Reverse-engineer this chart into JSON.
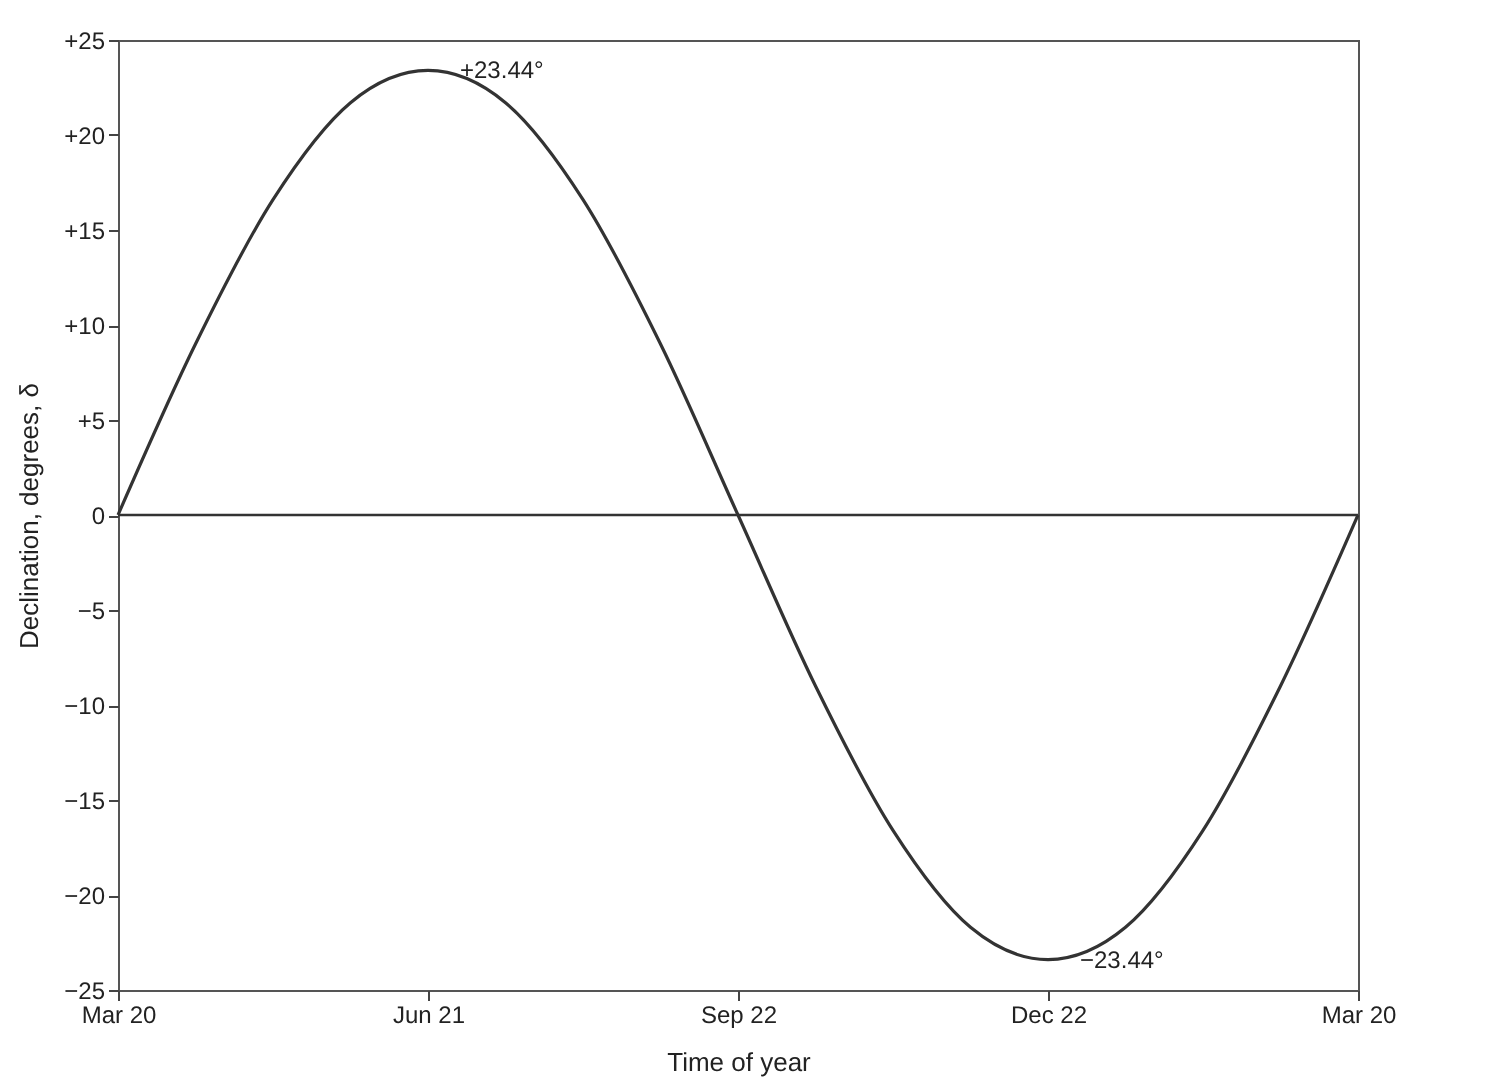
{
  "chart_data": {
    "type": "line",
    "xlabel": "Time of year",
    "ylabel": "Declination, degrees, δ",
    "categories": [
      "Mar 20",
      null,
      null,
      null,
      "Jun 21",
      null,
      null,
      null,
      "Sep 22",
      null,
      null,
      null,
      "Dec 22",
      null,
      null,
      null,
      "Mar 20"
    ],
    "series": [
      {
        "color": "#333333",
        "values": [
          0,
          9.0,
          16.6,
          21.7,
          23.4,
          21.7,
          16.6,
          9.0,
          0,
          -9.0,
          -16.6,
          -21.7,
          -23.4,
          -21.7,
          -16.6,
          -9.0,
          0
        ]
      }
    ],
    "ylim": [
      -25,
      25
    ],
    "yticks": [
      {
        "value": -25,
        "label": "−25"
      },
      {
        "value": -20,
        "label": "−20"
      },
      {
        "value": -15,
        "label": "−15"
      },
      {
        "value": -10,
        "label": "−10"
      },
      {
        "value": -5,
        "label": "−5"
      },
      0,
      {
        "value": 5,
        "label": "+5"
      },
      {
        "value": 10,
        "label": "+10"
      },
      {
        "value": 15,
        "label": "+15"
      },
      {
        "value": 20,
        "label": "+20"
      },
      {
        "value": 25,
        "label": "+25"
      }
    ],
    "ref_lines": [
      {
        "axis": "y",
        "value": 0
      }
    ],
    "annotations": [
      {
        "text": "+23.44°",
        "x": "Jun 21",
        "y": 23.44
      },
      {
        "text": "−23.44°",
        "x": "Dec 22",
        "y": -23.44
      }
    ]
  }
}
